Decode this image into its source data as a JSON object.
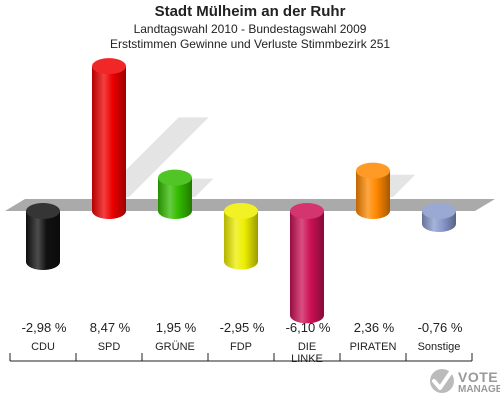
{
  "header": {
    "title": "Stadt Mülheim an der Ruhr",
    "subtitle1": "Landtagswahl 2010 - Bundestagswahl 2009",
    "subtitle2": "Erststimmen Gewinne und Verluste Stimmbezirk 251"
  },
  "logo": {
    "line1": "VOTE",
    "line2": "MANAGER"
  },
  "chart_data": {
    "type": "bar",
    "categories": [
      "CDU",
      "SPD",
      "GRÜNE",
      "FDP",
      "DIE LINKE",
      "PIRATEN",
      "Sonstige"
    ],
    "values": [
      -2.98,
      8.47,
      1.95,
      -2.95,
      -6.1,
      2.36,
      -0.76
    ],
    "value_labels": [
      "-2,98 %",
      "8,47 %",
      "1,95 %",
      "-2,95 %",
      "-6,10 %",
      "2,36 %",
      "-0,76 %"
    ],
    "colors": [
      "#111111",
      "#ee0000",
      "#33bb00",
      "#eeee00",
      "#cc1155",
      "#ff8800",
      "#8899cc"
    ],
    "ylim": [
      -6.1,
      8.47
    ],
    "grid": false,
    "legend": "none"
  }
}
